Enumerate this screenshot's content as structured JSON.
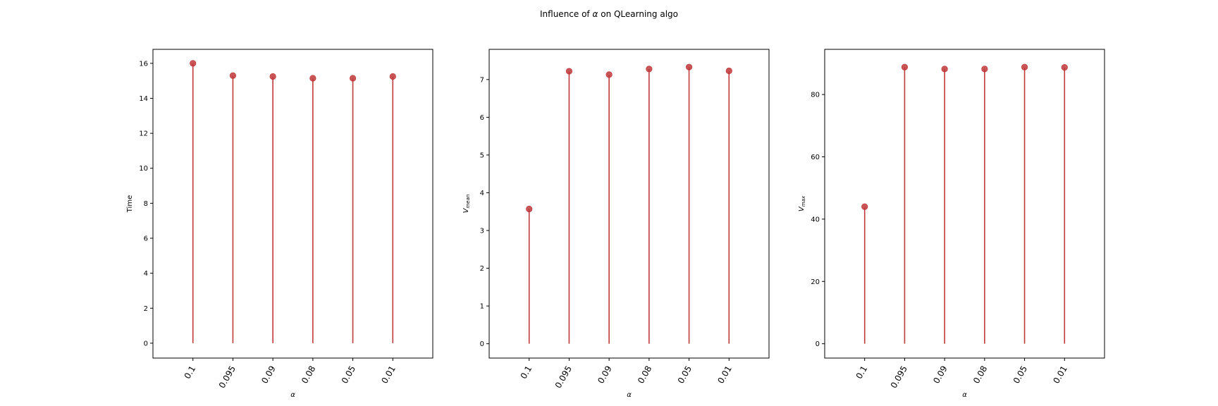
{
  "figure": {
    "title_prefix": "Influence of ",
    "title_symbol": "α",
    "title_suffix": " on QLearning algo"
  },
  "chart_data": [
    {
      "type": "stem",
      "categories": [
        "0.1",
        "0.095",
        "0.09",
        "0.08",
        "0.05",
        "0.01"
      ],
      "values": [
        16.0,
        15.3,
        15.25,
        15.15,
        15.15,
        15.25
      ],
      "xlabel": "α",
      "ylabel": "Time",
      "ylabel_sub": "",
      "ylim": [
        -0.85,
        16.8
      ],
      "yticks": [
        0,
        2,
        4,
        6,
        8,
        10,
        12,
        14,
        16
      ],
      "color": "#c0393b",
      "grid": false
    },
    {
      "type": "stem",
      "categories": [
        "0.1",
        "0.095",
        "0.09",
        "0.08",
        "0.05",
        "0.01"
      ],
      "values": [
        3.57,
        7.22,
        7.13,
        7.28,
        7.33,
        7.23
      ],
      "xlabel": "α",
      "ylabel": "V",
      "ylabel_sub": "mean",
      "ylim": [
        -0.38,
        7.8
      ],
      "yticks": [
        0,
        1,
        2,
        3,
        4,
        5,
        6,
        7
      ],
      "color": "#c0393b",
      "grid": false
    },
    {
      "type": "stem",
      "categories": [
        "0.1",
        "0.095",
        "0.09",
        "0.08",
        "0.05",
        "0.01"
      ],
      "values": [
        44.0,
        88.8,
        88.2,
        88.2,
        88.8,
        88.7
      ],
      "xlabel": "α",
      "ylabel": "V",
      "ylabel_sub": "max",
      "ylim": [
        -4.6,
        94.5
      ],
      "yticks": [
        0,
        20,
        40,
        60,
        80
      ],
      "color": "#c0393b",
      "grid": false
    }
  ]
}
